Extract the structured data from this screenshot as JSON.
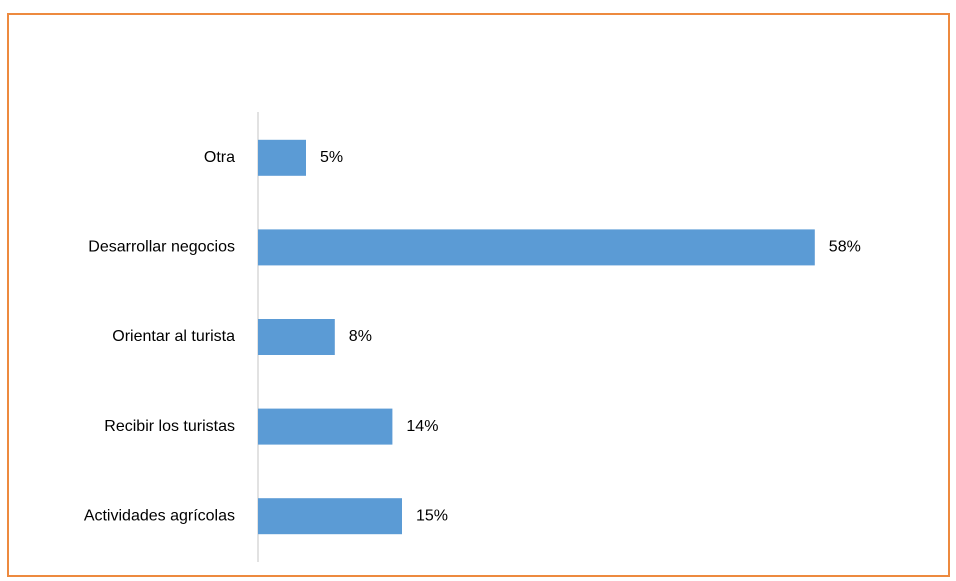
{
  "chart_data": {
    "type": "bar",
    "orientation": "horizontal",
    "categories": [
      "Otra",
      "Desarrollar negocios",
      "Orientar al turista",
      "Recibir los turistas",
      "Actividades agrícolas"
    ],
    "values": [
      5,
      58,
      8,
      14,
      15
    ],
    "value_labels": [
      "5%",
      "58%",
      "8%",
      "14%",
      "15%"
    ],
    "color": "#5b9bd5"
  }
}
